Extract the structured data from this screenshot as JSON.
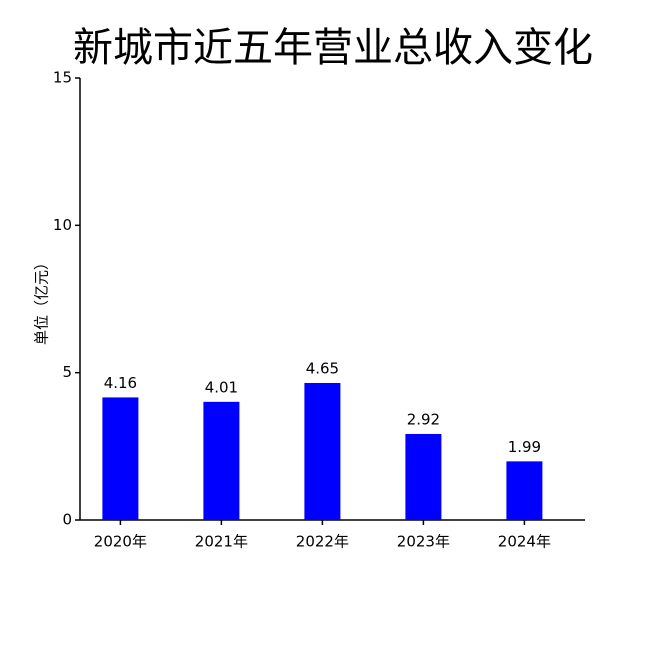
{
  "chart_data": {
    "type": "bar",
    "title": "新城市近五年营业总收入变化",
    "y_label": "单位（亿元）",
    "categories": [
      "2020年",
      "2021年",
      "2022年",
      "2023年",
      "2024年"
    ],
    "values": [
      4.16,
      4.01,
      4.65,
      2.92,
      1.99
    ],
    "color": "#0000ff",
    "ylim": [
      0,
      15
    ],
    "yticks": [
      0,
      5,
      10,
      15
    ],
    "grid": false
  }
}
